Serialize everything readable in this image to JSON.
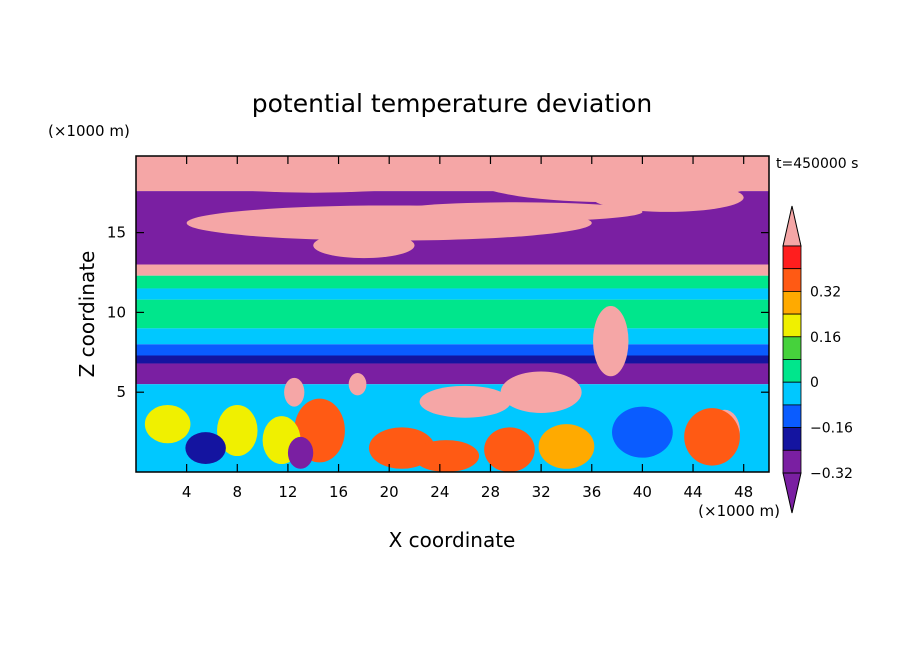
{
  "chart_data": {
    "type": "heatmap",
    "title": "potential temperature deviation",
    "xlabel": "X coordinate",
    "ylabel": "Z coordinate",
    "x_unit": "(×1000 m)",
    "y_unit": "(×1000 m)",
    "time_label": "t=450000 s",
    "xlim": [
      0,
      50
    ],
    "ylim": [
      0,
      19.8
    ],
    "x_ticks": [
      4,
      8,
      12,
      16,
      20,
      24,
      28,
      32,
      36,
      40,
      44,
      48
    ],
    "y_ticks": [
      5,
      10,
      15
    ],
    "colorbar": {
      "extend": "both",
      "levels": [
        -0.4,
        -0.32,
        -0.24,
        -0.16,
        -0.08,
        0,
        0.08,
        0.16,
        0.24,
        0.32,
        0.4
      ],
      "labeled_values": [
        -0.32,
        -0.16,
        0,
        0.16,
        0.32
      ],
      "tick_labels": [
        "-0.32",
        "-0.16",
        "0",
        "0.16",
        "0.32"
      ],
      "under_color": "#7a1fa2",
      "colors": [
        "#7a1fa2",
        "#1414a0",
        "#0a5cff",
        "#00c8ff",
        "#00e68c",
        "#46d23c",
        "#f0f000",
        "#ffaa00",
        "#ff5a14",
        "#ff1e1e"
      ],
      "over_color": "#f5a6a6"
    },
    "bands": [
      {
        "z": [
          17.6,
          19.8
        ],
        "value": 0.45
      },
      {
        "z": [
          13.0,
          17.6
        ],
        "value": -0.45
      },
      {
        "z": [
          12.3,
          13.0
        ],
        "value": 0.45
      },
      {
        "z": [
          11.5,
          12.3
        ],
        "value": -0.05
      },
      {
        "z": [
          10.8,
          11.5
        ],
        "value": -0.12
      },
      {
        "z": [
          9.0,
          10.8
        ],
        "value": -0.04
      },
      {
        "z": [
          8.0,
          9.0
        ],
        "value": -0.12
      },
      {
        "z": [
          7.3,
          8.0
        ],
        "value": -0.2
      },
      {
        "z": [
          6.8,
          7.3
        ],
        "value": -0.3
      },
      {
        "z": [
          5.5,
          6.8
        ],
        "value": -0.45
      },
      {
        "z": [
          0,
          5.5
        ],
        "value": -0.12
      }
    ],
    "features": [
      {
        "x": 14,
        "z": 18.8,
        "rx": 12,
        "rz": 1.3,
        "value": 0.45
      },
      {
        "x": 38,
        "z": 18.2,
        "rx": 11,
        "rz": 1.3,
        "value": 0.45
      },
      {
        "x": 20,
        "z": 15.6,
        "rx": 16,
        "rz": 1.1,
        "value": 0.45
      },
      {
        "x": 42,
        "z": 17.2,
        "rx": 6,
        "rz": 0.9,
        "value": 0.45
      },
      {
        "x": 30,
        "z": 16.3,
        "rx": 10,
        "rz": 0.6,
        "value": 0.45
      },
      {
        "x": 18,
        "z": 14.2,
        "rx": 4,
        "rz": 0.8,
        "value": 0.45
      },
      {
        "x": 37.5,
        "z": 8.2,
        "rx": 1.4,
        "rz": 2.2,
        "value": 0.45
      },
      {
        "x": 32,
        "z": 5.0,
        "rx": 3.2,
        "rz": 1.3,
        "value": 0.45
      },
      {
        "x": 26,
        "z": 4.4,
        "rx": 3.6,
        "rz": 1.0,
        "value": 0.45
      },
      {
        "x": 46.5,
        "z": 2.6,
        "rx": 1.2,
        "rz": 1.3,
        "value": 0.45
      },
      {
        "x": 12.5,
        "z": 5.0,
        "rx": 0.8,
        "rz": 0.9,
        "value": 0.45
      },
      {
        "x": 17.5,
        "z": 5.5,
        "rx": 0.7,
        "rz": 0.7,
        "value": 0.45
      },
      {
        "x": 21,
        "z": 1.5,
        "rx": 2.6,
        "rz": 1.3,
        "value": 0.3
      },
      {
        "x": 24.5,
        "z": 1.0,
        "rx": 2.6,
        "rz": 1.0,
        "value": 0.28
      },
      {
        "x": 29.5,
        "z": 1.4,
        "rx": 2.0,
        "rz": 1.4,
        "value": 0.25
      },
      {
        "x": 14.5,
        "z": 2.6,
        "rx": 2.0,
        "rz": 2.0,
        "value": 0.26
      },
      {
        "x": 11.5,
        "z": 2.0,
        "rx": 1.5,
        "rz": 1.5,
        "value": 0.12
      },
      {
        "x": 8.0,
        "z": 2.6,
        "rx": 1.6,
        "rz": 1.6,
        "value": 0.1
      },
      {
        "x": 2.5,
        "z": 3.0,
        "rx": 1.8,
        "rz": 1.2,
        "value": 0.08
      },
      {
        "x": 34,
        "z": 1.6,
        "rx": 2.2,
        "rz": 1.4,
        "value": 0.18
      },
      {
        "x": 45.5,
        "z": 2.2,
        "rx": 2.2,
        "rz": 1.8,
        "value": 0.3
      },
      {
        "x": 40,
        "z": 2.5,
        "rx": 2.4,
        "rz": 1.6,
        "value": -0.2
      },
      {
        "x": 5.5,
        "z": 1.5,
        "rx": 1.6,
        "rz": 1.0,
        "value": -0.3
      },
      {
        "x": 13.0,
        "z": 1.2,
        "rx": 1.0,
        "rz": 1.0,
        "value": -0.4
      }
    ]
  }
}
